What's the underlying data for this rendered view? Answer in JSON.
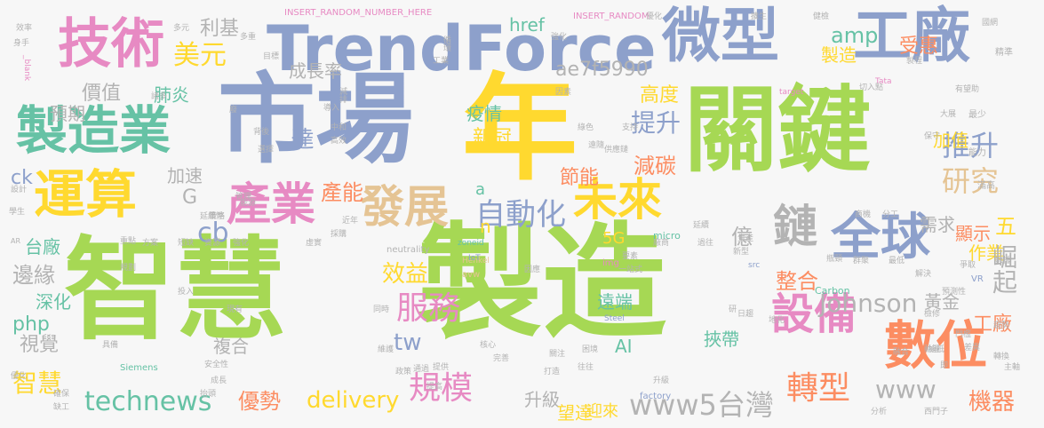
{
  "colors": {
    "green": "#a6d854",
    "blue": "#8da0cb",
    "orange": "#fc8d62",
    "yellow": "#ffd92f",
    "teal": "#66c2a5",
    "pink": "#e78ac3",
    "tan": "#e5c494",
    "gray": "#b3b3b3"
  },
  "words": [
    {
      "text": "智慧",
      "color": "green"
    },
    {
      "text": "製造",
      "color": "green"
    },
    {
      "text": "市場",
      "color": "blue"
    },
    {
      "text": "年",
      "color": "yellow"
    },
    {
      "text": "關鍵",
      "color": "green"
    },
    {
      "text": "TrendForce",
      "color": "blue"
    },
    {
      "text": "微型",
      "color": "blue"
    },
    {
      "text": "工廠",
      "color": "blue"
    },
    {
      "text": "技術",
      "color": "pink"
    },
    {
      "text": "製造業",
      "color": "teal"
    },
    {
      "text": "運算",
      "color": "yellow"
    },
    {
      "text": "產業",
      "color": "pink"
    },
    {
      "text": "發展",
      "color": "tan"
    },
    {
      "text": "未來",
      "color": "yellow"
    },
    {
      "text": "全球",
      "color": "blue"
    },
    {
      "text": "數位",
      "color": "orange"
    },
    {
      "text": "設備",
      "color": "pink"
    },
    {
      "text": "自動化",
      "color": "blue"
    },
    {
      "text": "鏈",
      "color": "gray"
    },
    {
      "text": "推升",
      "color": "blue"
    },
    {
      "text": "研究",
      "color": "tan"
    },
    {
      "text": "轉型",
      "color": "orange"
    },
    {
      "text": "服務",
      "color": "pink"
    },
    {
      "text": "規模",
      "color": "pink"
    },
    {
      "text": "technews",
      "color": "teal"
    },
    {
      "text": "www5台灣",
      "color": "gray"
    },
    {
      "text": "Johnson",
      "color": "gray"
    },
    {
      "text": "美元",
      "color": "yellow"
    },
    {
      "text": "利基",
      "color": "gray"
    },
    {
      "text": "ae7f5990",
      "color": "gray"
    },
    {
      "text": "amp",
      "color": "teal"
    },
    {
      "text": "受惠",
      "color": "orange"
    },
    {
      "text": "製造",
      "color": "yellow"
    },
    {
      "text": "價值",
      "color": "gray"
    },
    {
      "text": "成長率",
      "color": "gray"
    },
    {
      "text": "預期",
      "color": "gray"
    },
    {
      "text": "肺炎",
      "color": "teal"
    },
    {
      "text": "疫情",
      "color": "teal"
    },
    {
      "text": "高度",
      "color": "yellow"
    },
    {
      "text": "提升",
      "color": "blue"
    },
    {
      "text": "新冠",
      "color": "yellow"
    },
    {
      "text": "減碳",
      "color": "orange"
    },
    {
      "text": "節能",
      "color": "orange"
    },
    {
      "text": "產能",
      "color": "orange"
    },
    {
      "text": "加值",
      "color": "yellow"
    },
    {
      "text": "加速",
      "color": "gray"
    },
    {
      "text": "億",
      "color": "gray"
    },
    {
      "text": "五",
      "color": "yellow"
    },
    {
      "text": "需求",
      "color": "gray"
    },
    {
      "text": "顯示",
      "color": "orange"
    },
    {
      "text": "作業",
      "color": "yellow"
    },
    {
      "text": "崛起",
      "color": "gray"
    },
    {
      "text": "整合",
      "color": "orange"
    },
    {
      "text": "黃金",
      "color": "gray"
    },
    {
      "text": "工廠",
      "color": "orange"
    },
    {
      "text": "效益",
      "color": "yellow"
    },
    {
      "text": "遠端",
      "color": "teal"
    },
    {
      "text": "挾帶",
      "color": "teal"
    },
    {
      "text": "台廠",
      "color": "teal"
    },
    {
      "text": "邊緣",
      "color": "gray"
    },
    {
      "text": "深化",
      "color": "teal"
    },
    {
      "text": "php",
      "color": "teal"
    },
    {
      "text": "視覺",
      "color": "gray"
    },
    {
      "text": "智慧",
      "color": "yellow"
    },
    {
      "text": "複合",
      "color": "gray"
    },
    {
      "text": "優勢",
      "color": "orange"
    },
    {
      "text": "delivery",
      "color": "yellow"
    },
    {
      "text": "升級",
      "color": "gray"
    },
    {
      "text": "望達",
      "color": "yellow"
    },
    {
      "text": "迎來",
      "color": "yellow"
    },
    {
      "text": "機器",
      "color": "orange"
    },
    {
      "text": "www",
      "color": "gray"
    },
    {
      "text": "tw",
      "color": "blue"
    },
    {
      "text": "5G",
      "color": "yellow"
    },
    {
      "text": "AI",
      "color": "teal"
    },
    {
      "text": "cb",
      "color": "blue"
    },
    {
      "text": "ck",
      "color": "blue"
    },
    {
      "text": "G",
      "color": "gray"
    },
    {
      "text": "a",
      "color": "teal"
    },
    {
      "text": "n",
      "color": "yellow"
    },
    {
      "text": "href",
      "color": "teal"
    },
    {
      "text": "達",
      "color": "blue"
    },
    {
      "text": "INSERT_RANDOM_NUMBER_HERE",
      "color": "pink"
    },
    {
      "text": "INSERT_RANDOM",
      "color": "pink"
    },
    {
      "text": "zoneid",
      "color": "teal"
    },
    {
      "text": "Henkel",
      "color": "tan"
    },
    {
      "text": "avw",
      "color": "tan"
    },
    {
      "text": "neutrality",
      "color": "gray"
    },
    {
      "text": "IoT",
      "color": "blue"
    },
    {
      "text": "img",
      "color": "pink"
    },
    {
      "text": "src",
      "color": "blue"
    },
    {
      "text": "micro",
      "color": "teal"
    },
    {
      "text": "Carbon",
      "color": "teal"
    },
    {
      "text": "Steel",
      "color": "blue"
    },
    {
      "text": "Siemens",
      "color": "teal"
    },
    {
      "text": "factory",
      "color": "blue"
    },
    {
      "text": "target",
      "color": "pink"
    },
    {
      "text": "Tata",
      "color": "pink"
    },
    {
      "text": "VR",
      "color": "blue"
    },
    {
      "text": "AR",
      "color": "gray"
    },
    {
      "text": "_blank",
      "color": "pink"
    },
    {
      "text": "效率",
      "color": "gray"
    },
    {
      "text": "身手",
      "color": "gray"
    },
    {
      "text": "多元",
      "color": "gray"
    },
    {
      "text": "多重",
      "color": "gray"
    },
    {
      "text": "目標",
      "color": "gray"
    },
    {
      "text": "工業",
      "color": "gray"
    },
    {
      "text": "循環",
      "color": "gray"
    },
    {
      "text": "強化",
      "color": "gray"
    },
    {
      "text": "優化",
      "color": "gray"
    },
    {
      "text": "擴生",
      "color": "gray"
    },
    {
      "text": "健檢",
      "color": "gray"
    },
    {
      "text": "國網",
      "color": "gray"
    },
    {
      "text": "精準",
      "color": "gray"
    },
    {
      "text": "製程",
      "color": "gray"
    },
    {
      "text": "有望助",
      "color": "gray"
    },
    {
      "text": "切入點",
      "color": "gray"
    },
    {
      "text": "大展",
      "color": "gray"
    },
    {
      "text": "最少",
      "color": "gray"
    },
    {
      "text": "保守",
      "color": "gray"
    },
    {
      "text": "能力",
      "color": "gray"
    },
    {
      "text": "滿高",
      "color": "gray"
    },
    {
      "text": "商機",
      "color": "gray"
    },
    {
      "text": "分工",
      "color": "gray"
    },
    {
      "text": "數據",
      "color": "gray"
    },
    {
      "text": "生產",
      "color": "gray"
    },
    {
      "text": "預測性",
      "color": "gray"
    },
    {
      "text": "門檻",
      "color": "gray"
    },
    {
      "text": "檢修",
      "color": "gray"
    },
    {
      "text": "地化",
      "color": "gray"
    },
    {
      "text": "日趨",
      "color": "gray"
    },
    {
      "text": "分析",
      "color": "gray"
    },
    {
      "text": "西門子",
      "color": "gray"
    },
    {
      "text": "管理",
      "color": "gray"
    },
    {
      "text": "策略",
      "color": "gray"
    },
    {
      "text": "設計",
      "color": "gray"
    },
    {
      "text": "學生",
      "color": "gray"
    },
    {
      "text": "重點",
      "color": "gray"
    },
    {
      "text": "方案",
      "color": "gray"
    },
    {
      "text": "短缺",
      "color": "gray"
    },
    {
      "text": "資源",
      "color": "gray"
    },
    {
      "text": "強化",
      "color": "gray"
    },
    {
      "text": "虛實",
      "color": "gray"
    },
    {
      "text": "採購",
      "color": "gray"
    },
    {
      "text": "近年",
      "color": "gray"
    },
    {
      "text": "能源",
      "color": "gray"
    },
    {
      "text": "選擇",
      "color": "gray"
    },
    {
      "text": "中和",
      "color": "gray"
    },
    {
      "text": "高效",
      "color": "gray"
    },
    {
      "text": "背後",
      "color": "gray"
    },
    {
      "text": "導入",
      "color": "gray"
    },
    {
      "text": "減排",
      "color": "gray"
    },
    {
      "text": "廢",
      "color": "gray"
    },
    {
      "text": "諸多",
      "color": "gray"
    },
    {
      "text": "延續性",
      "color": "gray"
    },
    {
      "text": "規劃",
      "color": "gray"
    },
    {
      "text": "投入",
      "color": "gray"
    },
    {
      "text": "現有",
      "color": "gray"
    },
    {
      "text": "具備",
      "color": "gray"
    },
    {
      "text": "安全性",
      "color": "gray"
    },
    {
      "text": "成長",
      "color": "gray"
    },
    {
      "text": "抬頭",
      "color": "gray"
    },
    {
      "text": "同時",
      "color": "gray"
    },
    {
      "text": "維護",
      "color": "gray"
    },
    {
      "text": "政策",
      "color": "gray"
    },
    {
      "text": "通過",
      "color": "gray"
    },
    {
      "text": "提供",
      "color": "gray"
    },
    {
      "text": "提高",
      "color": "gray"
    },
    {
      "text": "核心",
      "color": "gray"
    },
    {
      "text": "完善",
      "color": "gray"
    },
    {
      "text": "因應",
      "color": "gray"
    },
    {
      "text": "延續",
      "color": "gray"
    },
    {
      "text": "過往",
      "color": "gray"
    },
    {
      "text": "廠商",
      "color": "gray"
    },
    {
      "text": "要素",
      "color": "gray"
    },
    {
      "text": "因素",
      "color": "gray"
    },
    {
      "text": "綠色",
      "color": "gray"
    },
    {
      "text": "遠隨",
      "color": "gray"
    },
    {
      "text": "供應鏈",
      "color": "gray"
    },
    {
      "text": "支持",
      "color": "gray"
    },
    {
      "text": "一站式",
      "color": "gray"
    },
    {
      "text": "往往",
      "color": "gray"
    },
    {
      "text": "關注",
      "color": "gray"
    },
    {
      "text": "打造",
      "color": "gray"
    },
    {
      "text": "困境",
      "color": "gray"
    },
    {
      "text": "升級",
      "color": "gray"
    },
    {
      "text": "新型",
      "color": "gray"
    },
    {
      "text": "群聚",
      "color": "gray"
    },
    {
      "text": "最低",
      "color": "gray"
    },
    {
      "text": "解決",
      "color": "gray"
    },
    {
      "text": "爭取",
      "color": "gray"
    },
    {
      "text": "融合",
      "color": "gray"
    },
    {
      "text": "搶抵",
      "color": "gray"
    },
    {
      "text": "差異",
      "color": "gray"
    },
    {
      "text": "趨勢",
      "color": "gray"
    },
    {
      "text": "轉換",
      "color": "gray"
    },
    {
      "text": "瓶頸",
      "color": "gray"
    },
    {
      "text": "優化",
      "color": "gray"
    },
    {
      "text": "確保",
      "color": "gray"
    },
    {
      "text": "缺工",
      "color": "gray"
    },
    {
      "text": "研",
      "color": "gray"
    },
    {
      "text": "動盪",
      "color": "gray"
    },
    {
      "text": "即",
      "color": "gray"
    },
    {
      "text": "主軸",
      "color": "gray"
    },
    {
      "text": "落",
      "color": "gray"
    },
    {
      "text": "模組",
      "color": "gray"
    },
    {
      "text": "然",
      "color": "gray"
    },
    {
      "text": "起",
      "color": "gray"
    },
    {
      "text": "雙",
      "color": "gray"
    },
    {
      "text": "廢",
      "color": "gray"
    }
  ]
}
